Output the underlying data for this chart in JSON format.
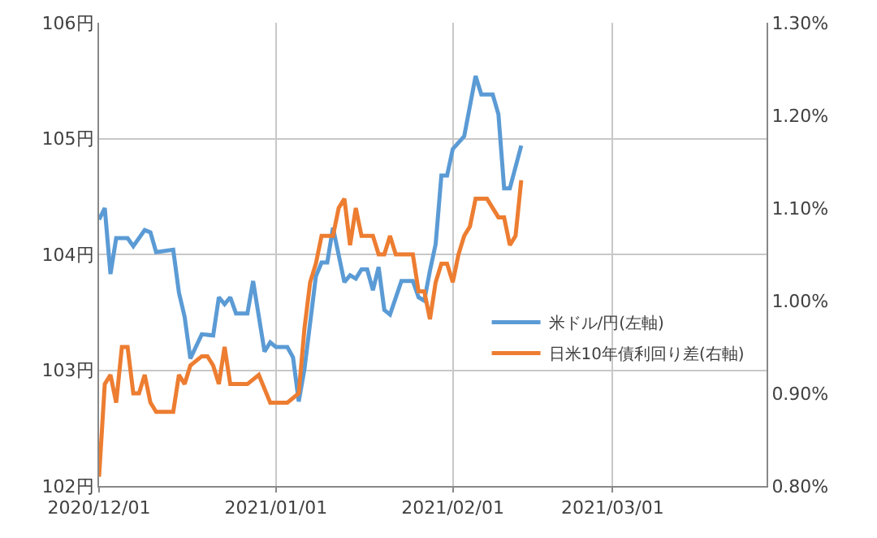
{
  "chart_data": {
    "type": "line",
    "xlim": [
      "2020-12-01",
      "2021-03-28"
    ],
    "xticks": [
      {
        "value": "2020-12-01",
        "label": "2020/12/01"
      },
      {
        "value": "2021-01-01",
        "label": "2021/01/01"
      },
      {
        "value": "2021-02-01",
        "label": "2021/02/01"
      },
      {
        "value": "2021-03-01",
        "label": "2021/03/01"
      }
    ],
    "ylim": [
      102,
      106
    ],
    "yticks": [
      {
        "value": 102,
        "label": "102円"
      },
      {
        "value": 103,
        "label": "103円"
      },
      {
        "value": 104,
        "label": "104円"
      },
      {
        "value": 105,
        "label": "105円"
      },
      {
        "value": 106,
        "label": "106円"
      }
    ],
    "y2lim": [
      0.8,
      1.3
    ],
    "y2ticks": [
      {
        "value": 0.8,
        "label": "0.80%"
      },
      {
        "value": 0.9,
        "label": "0.90%"
      },
      {
        "value": 1.0,
        "label": "1.00%"
      },
      {
        "value": 1.1,
        "label": "1.10%"
      },
      {
        "value": 1.2,
        "label": "1.20%"
      },
      {
        "value": 1.3,
        "label": "1.30%"
      }
    ],
    "grid": true,
    "legend": "right",
    "marker": "none",
    "line_style": "solid",
    "series": [
      {
        "name": "米ドル/円(左軸)",
        "color": "#5b9bd5",
        "x": [
          "2020-12-01",
          "2020-12-02",
          "2020-12-03",
          "2020-12-04",
          "2020-12-06",
          "2020-12-07",
          "2020-12-09",
          "2020-12-10",
          "2020-12-11",
          "2020-12-14",
          "2020-12-15",
          "2020-12-16",
          "2020-12-17",
          "2020-12-19",
          "2020-12-21",
          "2020-12-22",
          "2020-12-23",
          "2020-12-24",
          "2020-12-25",
          "2020-12-27",
          "2020-12-28",
          "2020-12-30",
          "2020-12-31",
          "2021-01-01",
          "2021-01-03",
          "2021-01-04",
          "2021-01-05",
          "2021-01-06",
          "2021-01-08",
          "2021-01-09",
          "2021-01-10",
          "2021-01-11",
          "2021-01-13",
          "2021-01-14",
          "2021-01-15",
          "2021-01-16",
          "2021-01-17",
          "2021-01-18",
          "2021-01-19",
          "2021-01-20",
          "2021-01-21",
          "2021-01-23",
          "2021-01-25",
          "2021-01-26",
          "2021-01-27",
          "2021-01-28",
          "2021-01-29",
          "2021-01-30",
          "2021-01-31",
          "2021-02-01",
          "2021-02-03",
          "2021-02-05",
          "2021-02-06",
          "2021-02-08",
          "2021-02-09",
          "2021-02-10",
          "2021-02-11",
          "2021-02-13"
        ],
        "values": [
          104.3,
          104.4,
          103.83,
          104.14,
          104.14,
          104.07,
          104.21,
          104.19,
          104.02,
          104.04,
          103.67,
          103.46,
          103.1,
          103.31,
          103.3,
          103.63,
          103.57,
          103.63,
          103.49,
          103.49,
          103.77,
          103.16,
          103.24,
          103.2,
          103.2,
          103.11,
          102.73,
          103.01,
          103.81,
          103.93,
          103.93,
          104.23,
          103.76,
          103.82,
          103.79,
          103.87,
          103.87,
          103.69,
          103.89,
          103.52,
          103.48,
          103.77,
          103.77,
          103.63,
          103.6,
          103.86,
          104.09,
          104.68,
          104.68,
          104.91,
          105.02,
          105.54,
          105.38,
          105.38,
          105.21,
          104.57,
          104.57,
          104.94
        ]
      },
      {
        "name": "日米10年債利回り差(右軸)",
        "color": "#ed7d31",
        "axis": "y2",
        "x": [
          "2020-12-01",
          "2020-12-02",
          "2020-12-03",
          "2020-12-04",
          "2020-12-05",
          "2020-12-06",
          "2020-12-07",
          "2020-12-08",
          "2020-12-09",
          "2020-12-10",
          "2020-12-11",
          "2020-12-14",
          "2020-12-15",
          "2020-12-16",
          "2020-12-17",
          "2020-12-19",
          "2020-12-20",
          "2020-12-21",
          "2020-12-22",
          "2020-12-23",
          "2020-12-24",
          "2020-12-25",
          "2020-12-27",
          "2020-12-29",
          "2020-12-31",
          "2021-01-03",
          "2021-01-05",
          "2021-01-06",
          "2021-01-07",
          "2021-01-08",
          "2021-01-09",
          "2021-01-11",
          "2021-01-12",
          "2021-01-13",
          "2021-01-14",
          "2021-01-15",
          "2021-01-16",
          "2021-01-18",
          "2021-01-19",
          "2021-01-20",
          "2021-01-21",
          "2021-01-22",
          "2021-01-25",
          "2021-01-26",
          "2021-01-27",
          "2021-01-28",
          "2021-01-29",
          "2021-01-30",
          "2021-01-31",
          "2021-02-01",
          "2021-02-02",
          "2021-02-03",
          "2021-02-04",
          "2021-02-05",
          "2021-02-07",
          "2021-02-09",
          "2021-02-10",
          "2021-02-11",
          "2021-02-12",
          "2021-02-13"
        ],
        "values": [
          0.81,
          0.91,
          0.92,
          0.89,
          0.95,
          0.95,
          0.9,
          0.9,
          0.92,
          0.89,
          0.88,
          0.88,
          0.92,
          0.91,
          0.93,
          0.94,
          0.94,
          0.93,
          0.91,
          0.95,
          0.91,
          0.91,
          0.91,
          0.92,
          0.89,
          0.89,
          0.9,
          0.97,
          1.02,
          1.04,
          1.07,
          1.07,
          1.1,
          1.11,
          1.06,
          1.1,
          1.07,
          1.07,
          1.05,
          1.05,
          1.07,
          1.05,
          1.05,
          1.01,
          1.01,
          0.98,
          1.02,
          1.04,
          1.04,
          1.02,
          1.05,
          1.07,
          1.08,
          1.11,
          1.11,
          1.09,
          1.09,
          1.06,
          1.07,
          1.13
        ]
      }
    ]
  }
}
